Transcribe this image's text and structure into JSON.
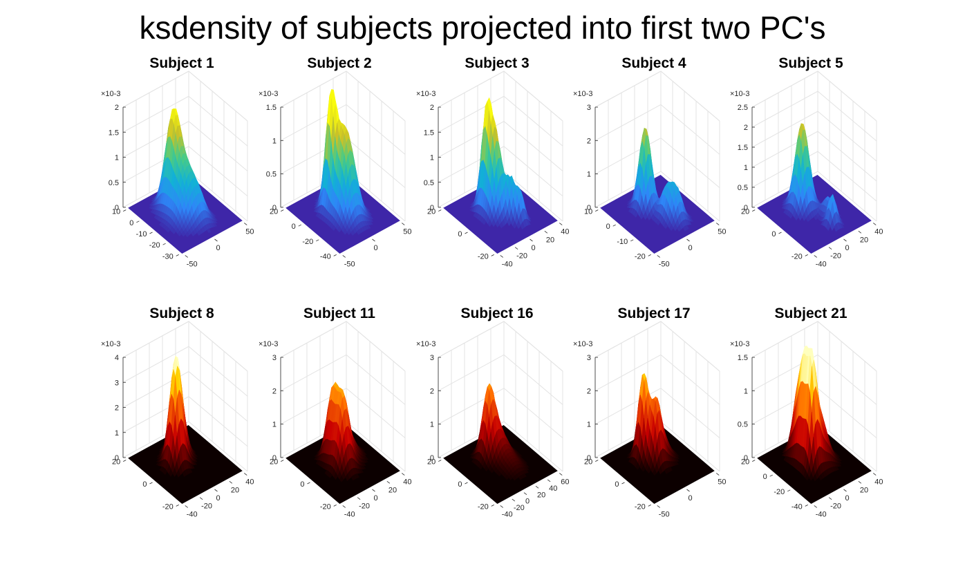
{
  "figure_title": "ksdensity of subjects projected into first two PC's",
  "chart_data": [
    {
      "type": "surface",
      "title": "Subject 1",
      "colormap": "parula",
      "z_multiplier": "×10-3",
      "zlim": [
        0,
        2
      ],
      "zticks": [
        "0",
        "0.5",
        "1",
        "1.5",
        "2"
      ],
      "yticks": [
        "10",
        "0",
        "-10",
        "-20",
        "-30"
      ],
      "xticks": [
        "-50",
        "0",
        "50"
      ],
      "peaks": [
        {
          "u": 0.35,
          "v": 0.45,
          "height": 1.75,
          "width": 0.09
        },
        {
          "u": 0.55,
          "v": 0.45,
          "height": 1.05,
          "width": 0.12
        },
        {
          "u": 0.7,
          "v": 0.55,
          "height": 0.3,
          "width": 0.08
        }
      ]
    },
    {
      "type": "surface",
      "title": "Subject 2",
      "colormap": "parula",
      "z_multiplier": "×10-3",
      "zlim": [
        0,
        1.5
      ],
      "zticks": [
        "0",
        "0.5",
        "1",
        "1.5"
      ],
      "yticks": [
        "20",
        "0",
        "-20",
        "-40"
      ],
      "xticks": [
        "-50",
        "0",
        "50"
      ],
      "peaks": [
        {
          "u": 0.38,
          "v": 0.42,
          "height": 1.4,
          "width": 0.06
        },
        {
          "u": 0.5,
          "v": 0.5,
          "height": 0.95,
          "width": 0.1
        },
        {
          "u": 0.62,
          "v": 0.5,
          "height": 0.6,
          "width": 0.1
        },
        {
          "u": 0.3,
          "v": 0.6,
          "height": 0.4,
          "width": 0.1
        }
      ]
    },
    {
      "type": "surface",
      "title": "Subject 3",
      "colormap": "parula",
      "z_multiplier": "×10-3",
      "zlim": [
        0,
        2
      ],
      "zticks": [
        "0",
        "0.5",
        "1",
        "1.5",
        "2"
      ],
      "yticks": [
        "20",
        "0",
        "-20"
      ],
      "xticks": [
        "-40",
        "-20",
        "0",
        "20",
        "40"
      ],
      "peaks": [
        {
          "u": 0.35,
          "v": 0.42,
          "height": 1.7,
          "width": 0.06
        },
        {
          "u": 0.47,
          "v": 0.45,
          "height": 1.55,
          "width": 0.08
        },
        {
          "u": 0.62,
          "v": 0.55,
          "height": 0.7,
          "width": 0.05
        },
        {
          "u": 0.72,
          "v": 0.6,
          "height": 0.6,
          "width": 0.05
        }
      ]
    },
    {
      "type": "surface",
      "title": "Subject 4",
      "colormap": "parula",
      "z_multiplier": "×10-3",
      "zlim": [
        0,
        3
      ],
      "zticks": [
        "0",
        "1",
        "2",
        "3"
      ],
      "yticks": [
        "10",
        "0",
        "-10",
        "-20"
      ],
      "xticks": [
        "-50",
        "0",
        "50"
      ],
      "peaks": [
        {
          "u": 0.35,
          "v": 0.45,
          "height": 2.45,
          "width": 0.07
        },
        {
          "u": 0.6,
          "v": 0.55,
          "height": 0.85,
          "width": 0.07
        },
        {
          "u": 0.72,
          "v": 0.6,
          "height": 0.9,
          "width": 0.07
        }
      ]
    },
    {
      "type": "surface",
      "title": "Subject 5",
      "colormap": "parula",
      "z_multiplier": "×10-3",
      "zlim": [
        0,
        2.5
      ],
      "zticks": [
        "0",
        "0.5",
        "1",
        "1.5",
        "2",
        "2.5"
      ],
      "yticks": [
        "20",
        "0",
        "-20"
      ],
      "xticks": [
        "-40",
        "-20",
        "0",
        "20",
        "40"
      ],
      "peaks": [
        {
          "u": 0.35,
          "v": 0.45,
          "height": 2.15,
          "width": 0.08
        },
        {
          "u": 0.6,
          "v": 0.62,
          "height": 0.45,
          "width": 0.06
        },
        {
          "u": 0.75,
          "v": 0.55,
          "height": 0.75,
          "width": 0.05
        }
      ]
    },
    {
      "type": "surface",
      "title": "Subject 8",
      "colormap": "hot",
      "z_multiplier": "×10-3",
      "zlim": [
        0,
        4
      ],
      "zticks": [
        "0",
        "1",
        "2",
        "3",
        "4"
      ],
      "yticks": [
        "20",
        "0",
        "-20"
      ],
      "xticks": [
        "-40",
        "-20",
        "0",
        "20",
        "40"
      ],
      "peaks": [
        {
          "u": 0.45,
          "v": 0.4,
          "height": 3.6,
          "width": 0.07
        },
        {
          "u": 0.38,
          "v": 0.5,
          "height": 2.0,
          "width": 0.08
        },
        {
          "u": 0.3,
          "v": 0.55,
          "height": 1.0,
          "width": 0.07
        }
      ]
    },
    {
      "type": "surface",
      "title": "Subject 11",
      "colormap": "hot",
      "z_multiplier": "×10-3",
      "zlim": [
        0,
        3
      ],
      "zticks": [
        "0",
        "1",
        "2",
        "3"
      ],
      "yticks": [
        "20",
        "0",
        "-20"
      ],
      "xticks": [
        "-40",
        "-20",
        "0",
        "20",
        "40"
      ],
      "peaks": [
        {
          "u": 0.38,
          "v": 0.45,
          "height": 1.85,
          "width": 0.07
        },
        {
          "u": 0.55,
          "v": 0.45,
          "height": 2.0,
          "width": 0.08
        },
        {
          "u": 0.45,
          "v": 0.6,
          "height": 0.8,
          "width": 0.1
        }
      ]
    },
    {
      "type": "surface",
      "title": "Subject 16",
      "colormap": "hot",
      "z_multiplier": "×10-3",
      "zlim": [
        0,
        3
      ],
      "zticks": [
        "0",
        "1",
        "2",
        "3"
      ],
      "yticks": [
        "20",
        "0",
        "-20"
      ],
      "xticks": [
        "-40",
        "-20",
        "0",
        "20",
        "40",
        "60"
      ],
      "peaks": [
        {
          "u": 0.35,
          "v": 0.45,
          "height": 1.85,
          "width": 0.07
        },
        {
          "u": 0.42,
          "v": 0.55,
          "height": 0.8,
          "width": 0.1
        },
        {
          "u": 0.65,
          "v": 0.55,
          "height": 0.3,
          "width": 0.1
        }
      ]
    },
    {
      "type": "surface",
      "title": "Subject 17",
      "colormap": "hot",
      "z_multiplier": "×10-3",
      "zlim": [
        0,
        3
      ],
      "zticks": [
        "0",
        "1",
        "2",
        "3"
      ],
      "yticks": [
        "20",
        "0",
        "-20"
      ],
      "xticks": [
        "-50",
        "0",
        "50"
      ],
      "peaks": [
        {
          "u": 0.35,
          "v": 0.42,
          "height": 2.5,
          "width": 0.06
        },
        {
          "u": 0.5,
          "v": 0.48,
          "height": 1.5,
          "width": 0.06
        },
        {
          "u": 0.45,
          "v": 0.58,
          "height": 0.9,
          "width": 0.09
        }
      ]
    },
    {
      "type": "surface",
      "title": "Subject 21",
      "colormap": "hot",
      "z_multiplier": "×10-3",
      "zlim": [
        0,
        1.5
      ],
      "zticks": [
        "0",
        "0.5",
        "1",
        "1.5"
      ],
      "yticks": [
        "20",
        "0",
        "-20",
        "-40"
      ],
      "xticks": [
        "-40",
        "-20",
        "0",
        "20",
        "40"
      ],
      "peaks": [
        {
          "u": 0.3,
          "v": 0.45,
          "height": 1.0,
          "width": 0.07
        },
        {
          "u": 0.42,
          "v": 0.42,
          "height": 1.15,
          "width": 0.06
        },
        {
          "u": 0.55,
          "v": 0.42,
          "height": 1.3,
          "width": 0.06
        },
        {
          "u": 0.5,
          "v": 0.55,
          "height": 0.8,
          "width": 0.1
        }
      ]
    }
  ]
}
